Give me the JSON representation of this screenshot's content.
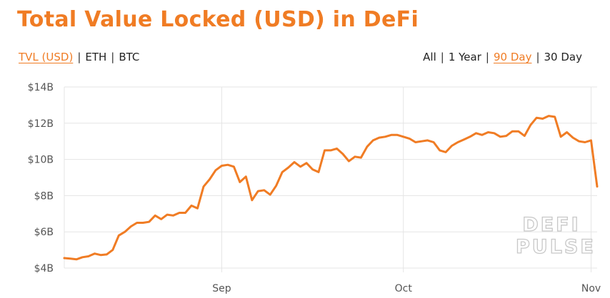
{
  "title": "Total Value Locked (USD) in DeFi",
  "currency_toggle": [
    {
      "label": "TVL (USD)",
      "active": true
    },
    {
      "label": "ETH",
      "active": false
    },
    {
      "label": "BTC",
      "active": false
    }
  ],
  "range_toggle": [
    {
      "label": "All",
      "active": false
    },
    {
      "label": "1 Year",
      "active": false
    },
    {
      "label": "90 Day",
      "active": true
    },
    {
      "label": "30 Day",
      "active": false
    }
  ],
  "watermark": [
    "DEFI",
    "PULSE"
  ],
  "colors": {
    "accent": "#f07c24",
    "grid": "#e5e5e5",
    "text": "#222222"
  },
  "chart_data": {
    "type": "line",
    "title": "Total Value Locked (USD) in DeFi",
    "xlabel": "",
    "ylabel": "",
    "ylim": [
      4,
      14
    ],
    "y_unit": "billion USD",
    "y_ticks": [
      4,
      6,
      8,
      10,
      12,
      14
    ],
    "y_tick_labels": [
      "$4B",
      "$6B",
      "$8B",
      "$10B",
      "$12B",
      "$14B"
    ],
    "x_ticks": [
      "2020-09-01",
      "2020-10-01",
      "2020-11-01"
    ],
    "x_tick_labels": [
      "Sep",
      "Oct",
      "Nov"
    ],
    "xlim": [
      "2020-08-06",
      "2020-11-02"
    ],
    "grid": true,
    "legend": "none",
    "series": [
      {
        "color": "#f07c24",
        "x": [
          "2020-08-06",
          "2020-08-07",
          "2020-08-08",
          "2020-08-09",
          "2020-08-10",
          "2020-08-11",
          "2020-08-12",
          "2020-08-13",
          "2020-08-14",
          "2020-08-15",
          "2020-08-16",
          "2020-08-17",
          "2020-08-18",
          "2020-08-19",
          "2020-08-20",
          "2020-08-21",
          "2020-08-22",
          "2020-08-23",
          "2020-08-24",
          "2020-08-25",
          "2020-08-26",
          "2020-08-27",
          "2020-08-28",
          "2020-08-29",
          "2020-08-30",
          "2020-08-31",
          "2020-09-01",
          "2020-09-02",
          "2020-09-03",
          "2020-09-04",
          "2020-09-05",
          "2020-09-06",
          "2020-09-07",
          "2020-09-08",
          "2020-09-09",
          "2020-09-10",
          "2020-09-11",
          "2020-09-12",
          "2020-09-13",
          "2020-09-14",
          "2020-09-15",
          "2020-09-16",
          "2020-09-17",
          "2020-09-18",
          "2020-09-19",
          "2020-09-20",
          "2020-09-21",
          "2020-09-22",
          "2020-09-23",
          "2020-09-24",
          "2020-09-25",
          "2020-09-26",
          "2020-09-27",
          "2020-09-28",
          "2020-09-29",
          "2020-09-30",
          "2020-10-01",
          "2020-10-02",
          "2020-10-03",
          "2020-10-04",
          "2020-10-05",
          "2020-10-06",
          "2020-10-07",
          "2020-10-08",
          "2020-10-09",
          "2020-10-10",
          "2020-10-11",
          "2020-10-12",
          "2020-10-13",
          "2020-10-14",
          "2020-10-15",
          "2020-10-16",
          "2020-10-17",
          "2020-10-18",
          "2020-10-19",
          "2020-10-20",
          "2020-10-21",
          "2020-10-22",
          "2020-10-23",
          "2020-10-24",
          "2020-10-25",
          "2020-10-26",
          "2020-10-27",
          "2020-10-28",
          "2020-10-29",
          "2020-10-30",
          "2020-10-31",
          "2020-11-01",
          "2020-11-02"
        ],
        "values": [
          4.55,
          4.52,
          4.48,
          4.6,
          4.65,
          4.8,
          4.72,
          4.75,
          5.0,
          5.8,
          6.0,
          6.3,
          6.5,
          6.5,
          6.55,
          6.9,
          6.7,
          6.95,
          6.9,
          7.05,
          7.05,
          7.45,
          7.3,
          8.5,
          8.9,
          9.4,
          9.65,
          9.7,
          9.6,
          8.75,
          9.05,
          7.75,
          8.25,
          8.3,
          8.05,
          8.55,
          9.3,
          9.55,
          9.85,
          9.6,
          9.8,
          9.45,
          9.3,
          10.5,
          10.5,
          10.6,
          10.3,
          9.9,
          10.15,
          10.1,
          10.7,
          11.05,
          11.2,
          11.25,
          11.35,
          11.35,
          11.25,
          11.15,
          10.95,
          11.0,
          11.05,
          10.95,
          10.5,
          10.4,
          10.75,
          10.95,
          11.1,
          11.25,
          11.45,
          11.35,
          11.5,
          11.45,
          11.25,
          11.3,
          11.55,
          11.55,
          11.3,
          11.9,
          12.3,
          12.25,
          12.4,
          12.35,
          11.25,
          11.5,
          11.2,
          11.0,
          10.95,
          11.05,
          8.5
        ]
      }
    ]
  }
}
